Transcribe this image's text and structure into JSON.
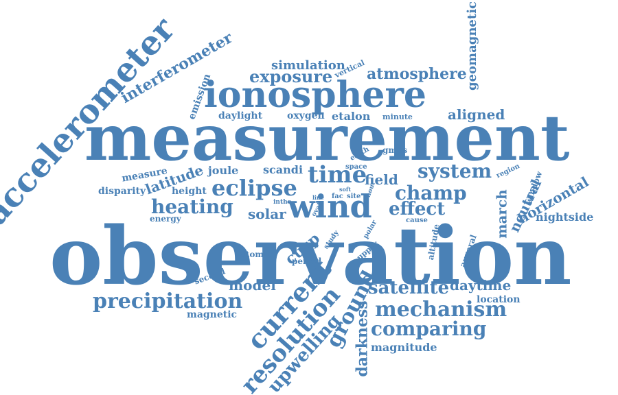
{
  "cloud": {
    "color": "#4a81b6",
    "words": [
      "observation",
      "measurement",
      "ionosphere",
      "accelerometer",
      "wind",
      "eclipse",
      "precipitation",
      "current",
      "resolution",
      "heating",
      "champ",
      "system",
      "mechanism",
      "ground",
      "upwelling",
      "time",
      "satellite",
      "comparing",
      "exposure",
      "effect",
      "atmosphere",
      "interferometer",
      "darkness",
      "geomagnetic",
      "solar",
      "simulation",
      "horizontal",
      "latitude",
      "aligned",
      "march",
      "neutral",
      "model",
      "daytime",
      "field",
      "cusp",
      "nightside",
      "magnitude",
      "etalon",
      "joule",
      "scandi",
      "daylight",
      "oxygen",
      "disparity",
      "height",
      "magnetic",
      "emission",
      "measure",
      "energy",
      "location",
      "atomic",
      "period",
      "second",
      "window",
      "altitude",
      "auroral",
      "gmds",
      "earth",
      "space",
      "region",
      "minute",
      "vertical",
      "cause",
      "study",
      "upper",
      "polar",
      "oval",
      "line",
      "fac",
      "site",
      "hour",
      "soft",
      "inthe"
    ]
  }
}
